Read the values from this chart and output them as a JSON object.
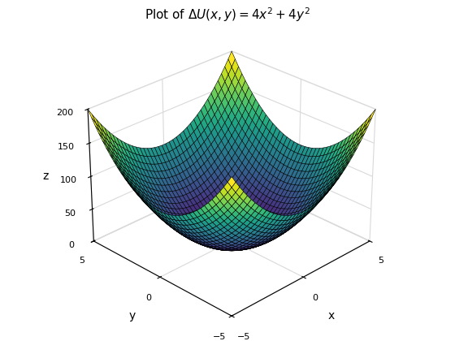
{
  "title": "Plot of $\\Delta U(x, y) = 4x^2 + 4y^2$",
  "xlabel": "x",
  "ylabel": "y",
  "zlabel": "z",
  "x_range": [
    -5,
    5
  ],
  "y_range": [
    -5,
    5
  ],
  "n_points": 40,
  "zlim": [
    0,
    200
  ],
  "zticks": [
    0,
    50,
    100,
    150,
    200
  ],
  "xticks": [
    -5,
    0,
    5
  ],
  "yticks": [
    -5,
    0,
    5
  ],
  "elev": 28,
  "azim": -135,
  "colormap": "viridis",
  "figsize": [
    5.6,
    4.2
  ],
  "dpi": 100,
  "pane_color": [
    1.0,
    1.0,
    1.0,
    1.0
  ],
  "edge_color": [
    0.85,
    0.85,
    0.85,
    1.0
  ]
}
